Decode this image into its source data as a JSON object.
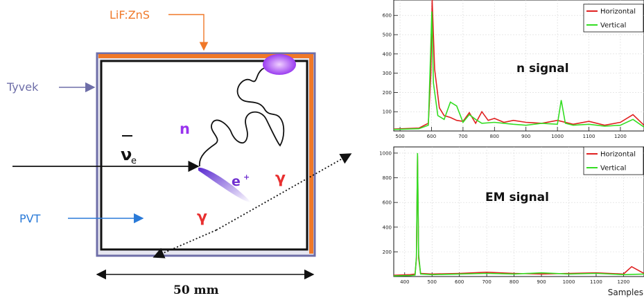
{
  "diagram": {
    "labels": {
      "lifzns": "LiF:ZnS",
      "tyvek": "Tyvek",
      "pvt": "PVT",
      "nu": "ν",
      "nu_sub": "e",
      "neutron": "n",
      "positron": "e",
      "positron_sup": "+",
      "gamma1": "γ",
      "gamma2": "γ",
      "dimension": "50 mm"
    },
    "colors": {
      "lifzns": "#f07828",
      "tyvek": "#6e6ea8",
      "pvt": "#2a7ad8",
      "neutron": "#9933ee",
      "gamma": "#e83030",
      "positron": "#7030d0"
    }
  },
  "chart_data": [
    {
      "type": "line",
      "annotation": "n signal",
      "xlim": [
        480,
        1275
      ],
      "ylim": [
        0,
        680
      ],
      "x_ticks": [
        500,
        600,
        700,
        800,
        900,
        1000,
        1100,
        1200
      ],
      "y_ticks": [
        100,
        200,
        300,
        400,
        500,
        600
      ],
      "legend": "top-right",
      "series": [
        {
          "name": "Horizontal",
          "color": "#e02020",
          "points": [
            [
              480,
              10
            ],
            [
              560,
              15
            ],
            [
              590,
              40
            ],
            [
              598,
              300
            ],
            [
              602,
              680
            ],
            [
              610,
              320
            ],
            [
              625,
              120
            ],
            [
              640,
              80
            ],
            [
              660,
              70
            ],
            [
              680,
              55
            ],
            [
              700,
              50
            ],
            [
              720,
              95
            ],
            [
              740,
              40
            ],
            [
              760,
              100
            ],
            [
              780,
              55
            ],
            [
              800,
              65
            ],
            [
              830,
              45
            ],
            [
              860,
              55
            ],
            [
              900,
              45
            ],
            [
              950,
              40
            ],
            [
              1000,
              55
            ],
            [
              1050,
              35
            ],
            [
              1100,
              50
            ],
            [
              1150,
              30
            ],
            [
              1200,
              45
            ],
            [
              1240,
              85
            ],
            [
              1275,
              30
            ]
          ]
        },
        {
          "name": "Vertical",
          "color": "#33dd22",
          "points": [
            [
              480,
              8
            ],
            [
              560,
              12
            ],
            [
              590,
              30
            ],
            [
              597,
              400
            ],
            [
              601,
              620
            ],
            [
              606,
              250
            ],
            [
              620,
              80
            ],
            [
              640,
              60
            ],
            [
              660,
              150
            ],
            [
              680,
              130
            ],
            [
              700,
              45
            ],
            [
              720,
              85
            ],
            [
              740,
              60
            ],
            [
              760,
              40
            ],
            [
              800,
              45
            ],
            [
              830,
              40
            ],
            [
              860,
              35
            ],
            [
              900,
              30
            ],
            [
              950,
              40
            ],
            [
              1000,
              35
            ],
            [
              1012,
              160
            ],
            [
              1025,
              40
            ],
            [
              1050,
              30
            ],
            [
              1100,
              35
            ],
            [
              1150,
              25
            ],
            [
              1200,
              30
            ],
            [
              1240,
              60
            ],
            [
              1275,
              20
            ]
          ]
        }
      ]
    },
    {
      "type": "line",
      "annotation": "EM signal",
      "xlabel": "Samples",
      "xlim": [
        360,
        1275
      ],
      "ylim": [
        0,
        1050
      ],
      "x_ticks": [
        400,
        500,
        600,
        700,
        800,
        900,
        1000,
        1100,
        1200
      ],
      "y_ticks": [
        200,
        400,
        600,
        800,
        1000
      ],
      "legend": "top-right",
      "series": [
        {
          "name": "Horizontal",
          "color": "#e02020",
          "points": [
            [
              360,
              10
            ],
            [
              420,
              15
            ],
            [
              438,
              20
            ],
            [
              443,
              150
            ],
            [
              447,
              980
            ],
            [
              451,
              150
            ],
            [
              458,
              25
            ],
            [
              500,
              20
            ],
            [
              600,
              25
            ],
            [
              700,
              35
            ],
            [
              800,
              25
            ],
            [
              900,
              20
            ],
            [
              1000,
              25
            ],
            [
              1100,
              30
            ],
            [
              1200,
              20
            ],
            [
              1230,
              80
            ],
            [
              1275,
              25
            ]
          ]
        },
        {
          "name": "Vertical",
          "color": "#33dd22",
          "points": [
            [
              360,
              5
            ],
            [
              420,
              8
            ],
            [
              438,
              12
            ],
            [
              443,
              160
            ],
            [
              447,
              1000
            ],
            [
              451,
              180
            ],
            [
              458,
              20
            ],
            [
              500,
              15
            ],
            [
              600,
              20
            ],
            [
              700,
              25
            ],
            [
              800,
              20
            ],
            [
              900,
              30
            ],
            [
              1000,
              20
            ],
            [
              1100,
              25
            ],
            [
              1200,
              15
            ],
            [
              1275,
              20
            ]
          ]
        }
      ]
    }
  ]
}
